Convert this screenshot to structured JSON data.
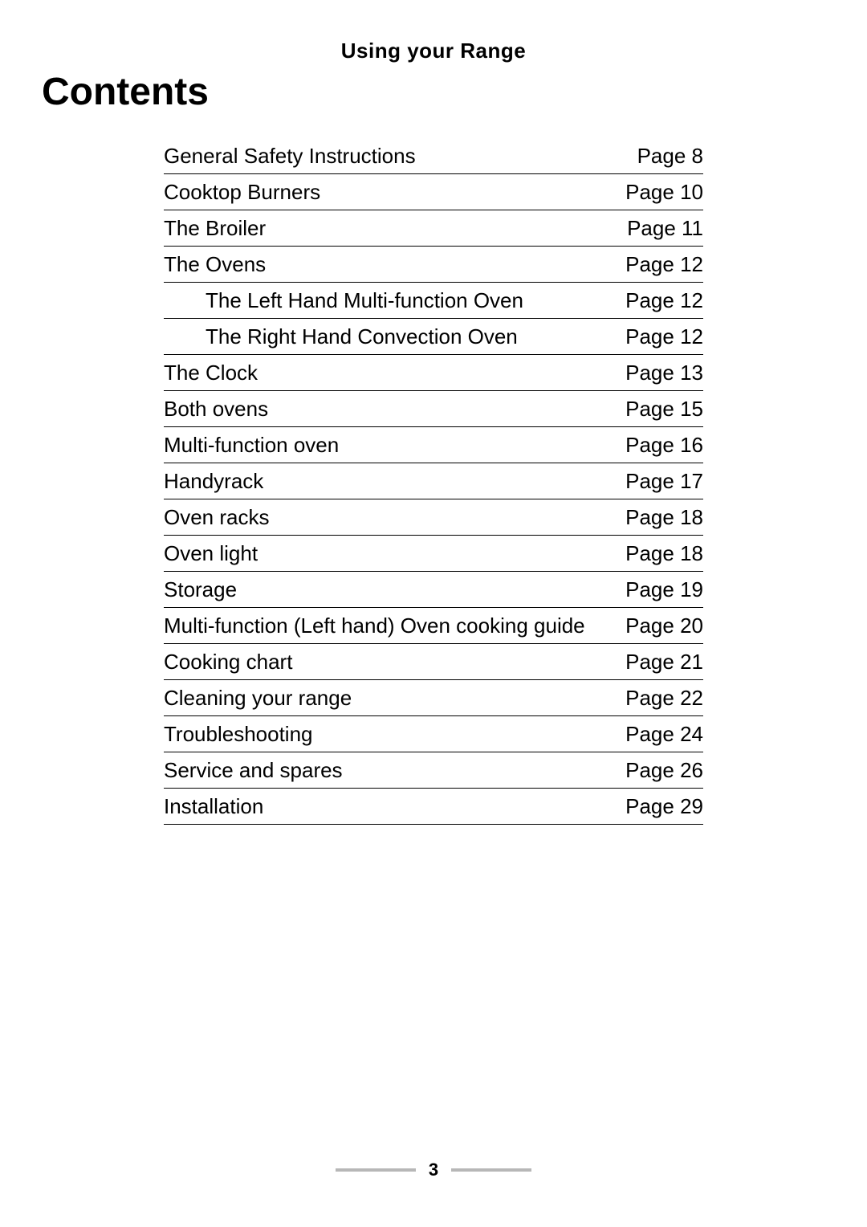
{
  "header": {
    "title": "Using your Range"
  },
  "section_title": "Contents",
  "toc": {
    "entries": [
      {
        "label": "General Safety Instructions",
        "page": "Page 8",
        "indent": false
      },
      {
        "label": "Cooktop Burners",
        "page": "Page 10",
        "indent": false
      },
      {
        "label": "The Broiler",
        "page": "Page 11",
        "indent": false
      },
      {
        "label": "The Ovens",
        "page": "Page 12",
        "indent": false
      },
      {
        "label": "The Left Hand Multi-function Oven",
        "page": "Page 12",
        "indent": true
      },
      {
        "label": "The Right Hand Convection Oven",
        "page": "Page 12",
        "indent": true
      },
      {
        "label": "The Clock",
        "page": "Page 13",
        "indent": false
      },
      {
        "label": "Both ovens",
        "page": "Page 15",
        "indent": false
      },
      {
        "label": "Multi-function oven",
        "page": "Page 16",
        "indent": false
      },
      {
        "label": "Handyrack",
        "page": "Page 17",
        "indent": false
      },
      {
        "label": "Oven racks",
        "page": "Page 18",
        "indent": false
      },
      {
        "label": "Oven light",
        "page": "Page 18",
        "indent": false
      },
      {
        "label": "Storage",
        "page": "Page 19",
        "indent": false
      },
      {
        "label": "Multi-function (Left hand) Oven cooking guide",
        "page": "Page 20",
        "indent": false
      },
      {
        "label": "Cooking chart",
        "page": "Page 21",
        "indent": false
      },
      {
        "label": "Cleaning your range",
        "page": "Page 22",
        "indent": false
      },
      {
        "label": "Troubleshooting",
        "page": "Page 24",
        "indent": false
      },
      {
        "label": "Service and spares",
        "page": "Page 26",
        "indent": false
      },
      {
        "label": "Installation",
        "page": "Page 29",
        "indent": false
      }
    ]
  },
  "footer": {
    "page_number": "3",
    "bar_color": "#b7b7b7"
  },
  "styling": {
    "background_color": "#ffffff",
    "text_color": "#000000",
    "header_fontsize": 26,
    "section_title_fontsize": 48,
    "toc_fontsize": 26,
    "footer_fontsize": 22,
    "toc_width": 672,
    "border_color": "#000000",
    "font_family": "Arial, Helvetica, sans-serif"
  }
}
